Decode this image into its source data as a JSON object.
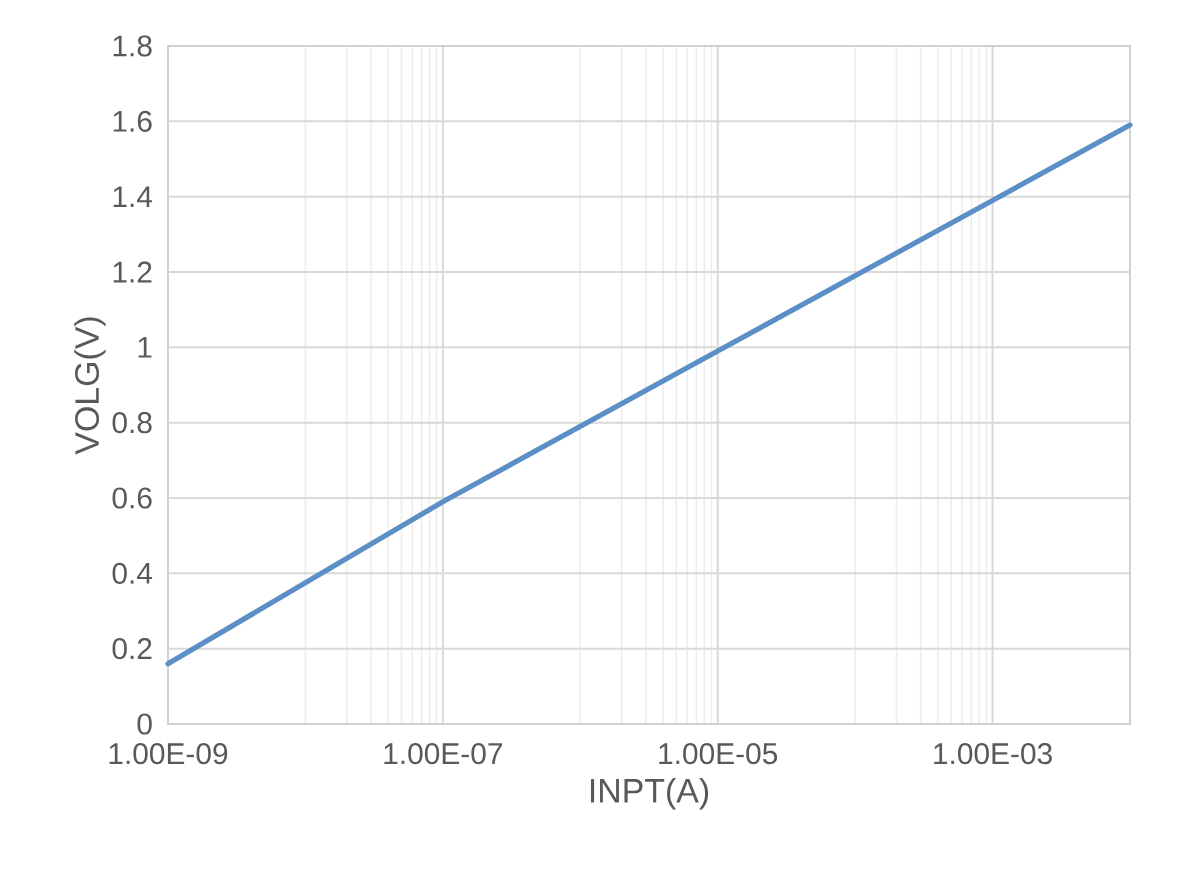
{
  "chart_data": {
    "type": "line",
    "xlabel": "INPT(A)",
    "ylabel": "VOLG(V)",
    "log": "x",
    "grid": true,
    "marker": "none",
    "line_style": "solid",
    "xlim": [
      1e-09,
      0.01
    ],
    "xticks": [
      {
        "value": 1e-09,
        "label": "1.00E-09"
      },
      {
        "value": 1e-07,
        "label": "1.00E-07"
      },
      {
        "value": 1e-05,
        "label": "1.00E-05"
      },
      {
        "value": 0.001,
        "label": "1.00E-03"
      }
    ],
    "ylim": [
      0,
      1.8
    ],
    "yticks": [
      0,
      0.2,
      0.4,
      0.6,
      0.8,
      1,
      1.2,
      1.4,
      1.6,
      1.8
    ],
    "x": [
      1e-09,
      1e-07,
      1e-05,
      0.001,
      0.01
    ],
    "series": [
      {
        "color": "#5b8fc5",
        "values": [
          0.16,
          0.59,
          0.99,
          1.39,
          1.59
        ]
      }
    ]
  }
}
